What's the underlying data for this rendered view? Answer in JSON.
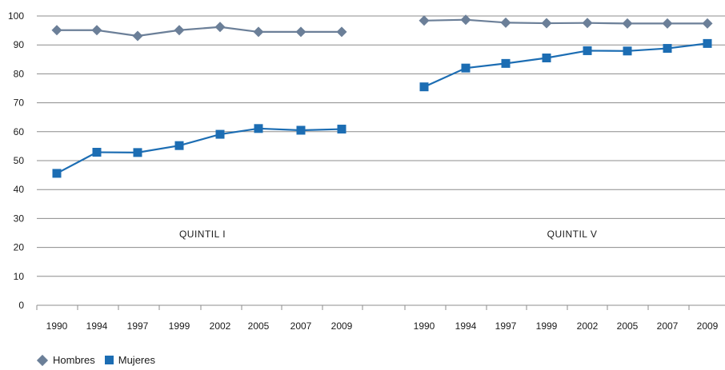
{
  "chart_data": {
    "type": "line",
    "title": "",
    "xlabel": "",
    "ylabel": "",
    "ylim": [
      0,
      100
    ],
    "yticks": [
      0,
      10,
      20,
      30,
      40,
      50,
      60,
      70,
      80,
      90,
      100
    ],
    "grid": true,
    "legend_position": "bottom-left",
    "groups": [
      {
        "label": "QUINTIL I",
        "categories": [
          "1990",
          "1994",
          "1997",
          "1999",
          "2002",
          "2005",
          "2007",
          "2009"
        ],
        "series": [
          {
            "name": "Hombres",
            "values": [
              95.1,
              95.1,
              93.1,
              95.1,
              96.2,
              94.5,
              94.5,
              94.5
            ]
          },
          {
            "name": "Mujeres",
            "values": [
              45.6,
              52.9,
              52.8,
              55.2,
              59.1,
              61.1,
              60.5,
              60.9
            ]
          }
        ]
      },
      {
        "label": "QUINTIL V",
        "categories": [
          "1990",
          "1994",
          "1997",
          "1999",
          "2002",
          "2005",
          "2007",
          "2009"
        ],
        "series": [
          {
            "name": "Hombres",
            "values": [
              98.4,
              98.7,
              97.7,
              97.5,
              97.6,
              97.4,
              97.4,
              97.4
            ]
          },
          {
            "name": "Mujeres",
            "values": [
              75.5,
              82.0,
              83.6,
              85.5,
              88.0,
              87.9,
              88.8,
              90.5
            ]
          }
        ]
      }
    ],
    "colors": {
      "Hombres": "#6b7f98",
      "Mujeres": "#1c6db3"
    }
  },
  "legend": {
    "items": [
      {
        "name": "Hombres",
        "marker": "diamond"
      },
      {
        "name": "Mujeres",
        "marker": "square"
      }
    ]
  }
}
